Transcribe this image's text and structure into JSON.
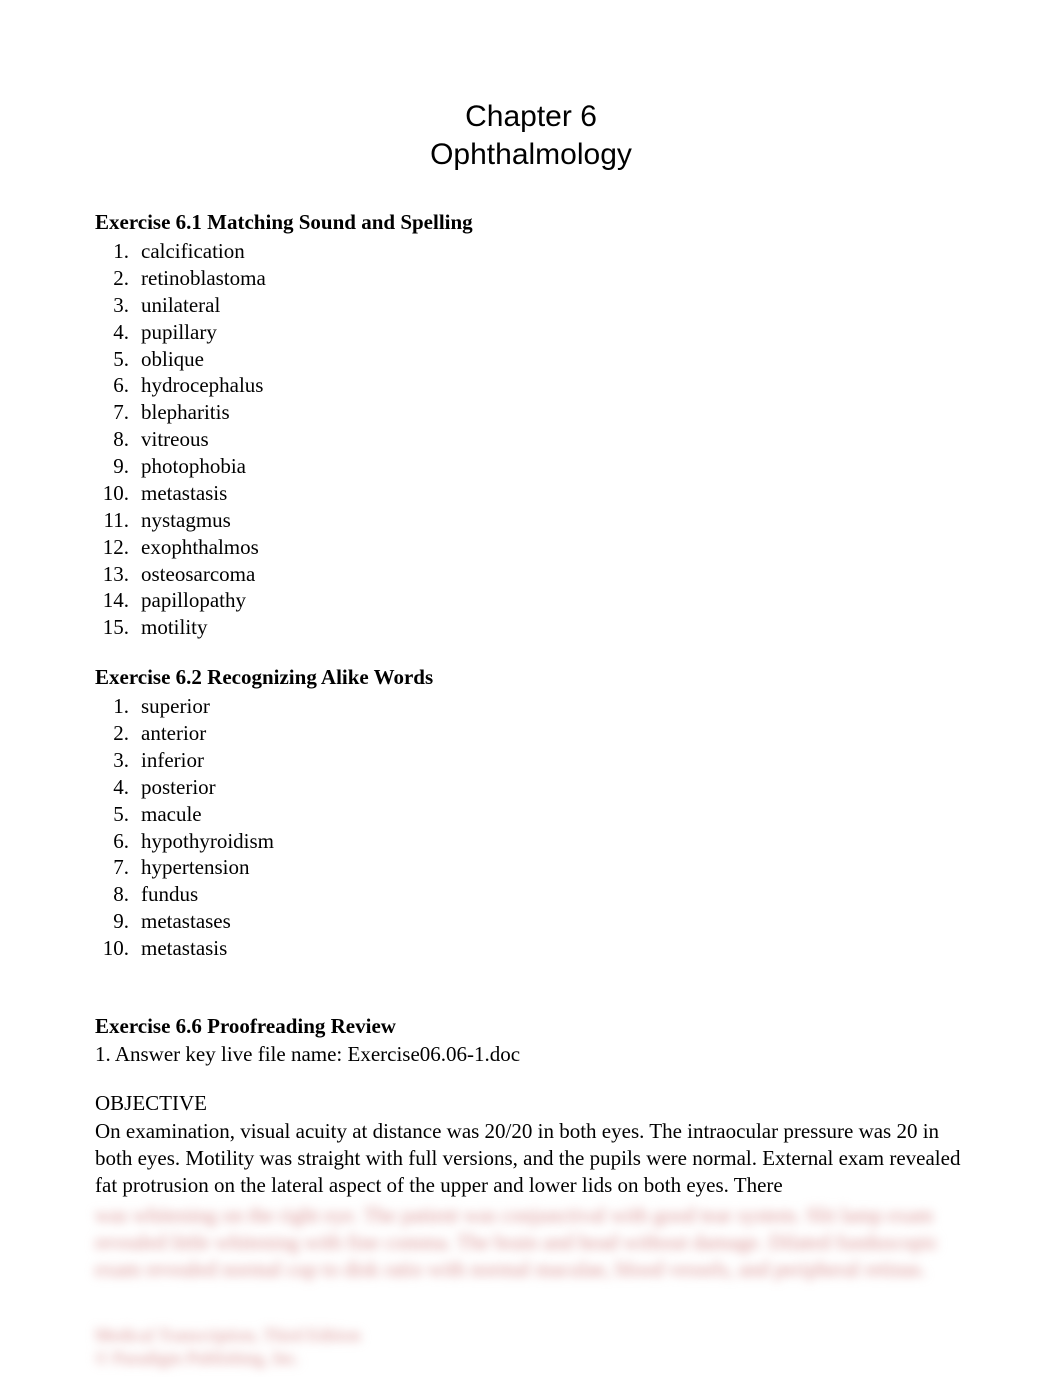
{
  "chapter": {
    "number_line": "Chapter 6",
    "title": "Ophthalmology"
  },
  "exercise1": {
    "heading": "Exercise 6.1 Matching Sound and Spelling",
    "items": [
      {
        "num": "1.",
        "text": "calcification"
      },
      {
        "num": "2.",
        "text": "retinoblastoma"
      },
      {
        "num": "3.",
        "text": "unilateral"
      },
      {
        "num": "4.",
        "text": "pupillary"
      },
      {
        "num": "5.",
        "text": "oblique"
      },
      {
        "num": "6.",
        "text": "hydrocephalus"
      },
      {
        "num": "7.",
        "text": "blepharitis"
      },
      {
        "num": "8.",
        "text": "vitreous"
      },
      {
        "num": "9.",
        "text": "photophobia"
      },
      {
        "num": "10.",
        "text": "metastasis"
      },
      {
        "num": "11.",
        "text": "nystagmus"
      },
      {
        "num": "12.",
        "text": "exophthalmos"
      },
      {
        "num": "13.",
        "text": "osteosarcoma"
      },
      {
        "num": "14.",
        "text": "papillopathy"
      },
      {
        "num": "15.",
        "text": "motility"
      }
    ]
  },
  "exercise2": {
    "heading": "Exercise 6.2 Recognizing Alike Words",
    "items": [
      {
        "num": "1.",
        "text": "superior"
      },
      {
        "num": "2.",
        "text": "anterior"
      },
      {
        "num": "3.",
        "text": "inferior"
      },
      {
        "num": "4.",
        "text": "posterior"
      },
      {
        "num": "5.",
        "text": "macule"
      },
      {
        "num": "6.",
        "text": "hypothyroidism"
      },
      {
        "num": "7.",
        "text": "hypertension"
      },
      {
        "num": "8.",
        "text": "fundus"
      },
      {
        "num": "9.",
        "text": "metastases"
      },
      {
        "num": "10.",
        "text": "metastasis"
      }
    ]
  },
  "exercise6": {
    "heading": "Exercise 6.6 Proofreading Review",
    "answer_key": "1. Answer key live file name: Exercise06.06-1.doc"
  },
  "objective": {
    "label": "OBJECTIVE",
    "paragraph": "On examination, visual acuity at distance was 20/20 in both eyes. The intraocular pressure was 20 in both eyes. Motility was straight with full versions, and the pupils were normal. External exam revealed fat protrusion on the lateral aspect of the upper and lower lids on both eyes. There"
  },
  "blurred": {
    "lines": "was whitening on the right eye. The patient was conjunctival with good tear system. Slit lamp exam revealed little whitening with fine comma. The brain and head without damage. Dilated funduscopic exam revealed normal cup to disk ratio with normal maculae, blood vessels, and peripheral retinas.",
    "footer_line1": "Medical Transcription, Third Edition",
    "footer_line2": "© Paradigm Publishing, Inc."
  },
  "styles": {
    "background_color": "#ffffff",
    "text_color": "#000000",
    "blurred_color": "#d89090",
    "title_fontsize": 30,
    "body_fontsize": 21,
    "title_font": "Verdana",
    "body_font": "Times New Roman"
  }
}
